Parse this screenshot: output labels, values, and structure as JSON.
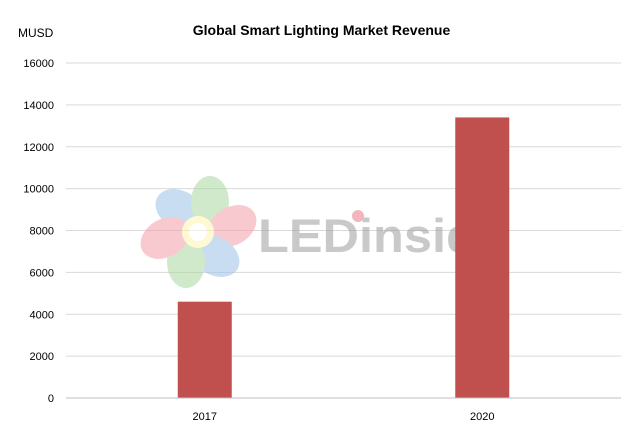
{
  "chart_data": {
    "type": "bar",
    "title": "Global Smart Lighting Market Revenue",
    "unit_label": "MUSD",
    "categories": [
      "2017",
      "2020"
    ],
    "values": [
      4600,
      13400
    ],
    "ylim": [
      0,
      16000
    ],
    "yticks": [
      "0",
      "2000",
      "4000",
      "6000",
      "8000",
      "10000",
      "12000",
      "14000",
      "16000"
    ],
    "grid": true,
    "legend": "none",
    "colors": {
      "bar": "#c0504d",
      "grid": "#d9d9d9",
      "axis": "#bfbfbf"
    }
  },
  "watermark": {
    "logo_text": "LEDinside",
    "icon_name": "ledinside-flower-logo"
  }
}
